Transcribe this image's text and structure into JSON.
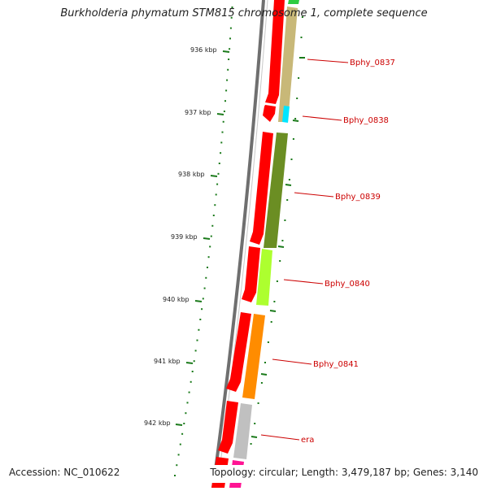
{
  "title": "Burkholderia phymatum STM815 chromosome 1, complete sequence",
  "footer": {
    "accession": "Accession: NC_010622",
    "topology": "Topology: circular; Length: 3,479,187 bp; Genes: 3,140"
  },
  "ruler": {
    "ticks": [
      {
        "label": "936 kbp"
      },
      {
        "label": "937 kbp"
      },
      {
        "label": "938 kbp"
      },
      {
        "label": "939 kbp"
      },
      {
        "label": "940 kbp"
      },
      {
        "label": "941 kbp"
      },
      {
        "label": "942 kbp"
      }
    ]
  },
  "gene_labels": [
    {
      "name": "Bphy_0837"
    },
    {
      "name": "Bphy_0838"
    },
    {
      "name": "Bphy_0839"
    },
    {
      "name": "Bphy_0840"
    },
    {
      "name": "Bphy_0841"
    },
    {
      "name": "era"
    }
  ],
  "colors": {
    "cds": "#ff0000",
    "backbone": "#808080",
    "ruler": "#1a7a1a",
    "label": "#cc0000",
    "gene_colors": [
      "#c8b878",
      "#00e5ff",
      "#6b8e23",
      "#adff2f",
      "#ff8c00",
      "#c0c0c0",
      "#ff1493",
      "#2ecc40"
    ]
  }
}
